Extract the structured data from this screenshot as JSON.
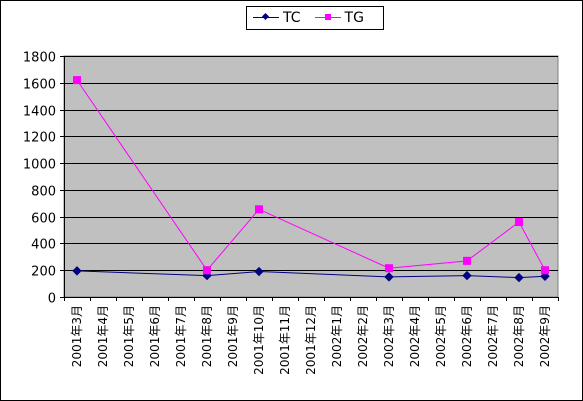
{
  "chart_data": {
    "type": "line",
    "categories": [
      "2001年3月",
      "2001年4月",
      "2001年5月",
      "2001年6月",
      "2001年7月",
      "2001年8月",
      "2001年9月",
      "2001年10月",
      "2001年11月",
      "2001年12月",
      "2002年1月",
      "2002年2月",
      "2002年3月",
      "2002年4月",
      "2002年5月",
      "2002年6月",
      "2002年7月",
      "2002年8月",
      "2002年9月"
    ],
    "series": [
      {
        "name": "TC",
        "color": "#000080",
        "marker": "diamond",
        "values": [
          195,
          null,
          null,
          null,
          null,
          160,
          null,
          190,
          null,
          null,
          null,
          null,
          150,
          null,
          null,
          160,
          null,
          145,
          155
        ]
      },
      {
        "name": "TG",
        "color": "#ff00ff",
        "marker": "square",
        "values": [
          1620,
          null,
          null,
          null,
          null,
          200,
          null,
          655,
          null,
          null,
          null,
          null,
          215,
          null,
          null,
          270,
          null,
          560,
          200
        ]
      }
    ],
    "ylim": [
      0,
      1800
    ],
    "yticks": [
      0,
      200,
      400,
      600,
      800,
      1000,
      1200,
      1400,
      1600,
      1800
    ],
    "grid": true,
    "plot_background": "#c0c0c0",
    "legend_position": "top-center",
    "title": "",
    "xlabel": "",
    "ylabel": ""
  }
}
